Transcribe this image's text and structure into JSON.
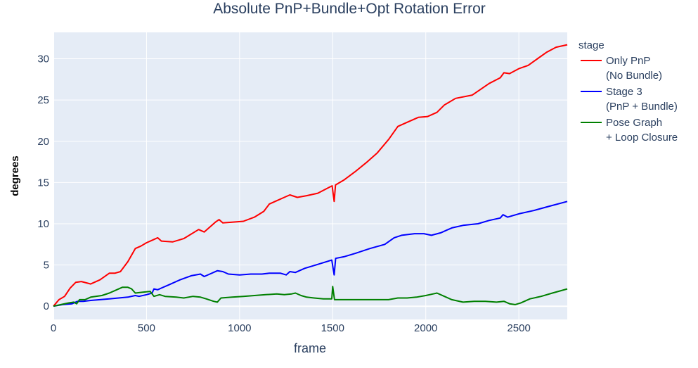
{
  "chart_data": {
    "type": "line",
    "title": "Absolute PnP+Bundle+Opt Rotation Error",
    "xlabel": "frame",
    "ylabel": "degrees",
    "xlim": [
      0,
      2760
    ],
    "ylim": [
      -1.6,
      33.2
    ],
    "x_ticks": [
      0,
      500,
      1000,
      1500,
      2000,
      2500
    ],
    "y_ticks": [
      0,
      5,
      10,
      15,
      20,
      25,
      30
    ],
    "grid": true,
    "legend_title": "stage",
    "legend_position": "right",
    "series": [
      {
        "name": "Only PnP\n(No Bundle)",
        "color": "#ff0000",
        "points": [
          [
            0,
            0
          ],
          [
            30,
            0.8
          ],
          [
            60,
            1.2
          ],
          [
            90,
            2.2
          ],
          [
            120,
            2.9
          ],
          [
            150,
            3.0
          ],
          [
            200,
            2.7
          ],
          [
            250,
            3.2
          ],
          [
            300,
            4.0
          ],
          [
            330,
            4.0
          ],
          [
            360,
            4.2
          ],
          [
            400,
            5.4
          ],
          [
            440,
            7.0
          ],
          [
            470,
            7.3
          ],
          [
            500,
            7.7
          ],
          [
            540,
            8.1
          ],
          [
            560,
            8.3
          ],
          [
            580,
            7.9
          ],
          [
            640,
            7.8
          ],
          [
            700,
            8.2
          ],
          [
            780,
            9.3
          ],
          [
            810,
            9.0
          ],
          [
            870,
            10.2
          ],
          [
            890,
            10.5
          ],
          [
            910,
            10.1
          ],
          [
            960,
            10.2
          ],
          [
            1020,
            10.3
          ],
          [
            1080,
            10.8
          ],
          [
            1130,
            11.5
          ],
          [
            1160,
            12.4
          ],
          [
            1200,
            12.8
          ],
          [
            1240,
            13.2
          ],
          [
            1270,
            13.5
          ],
          [
            1310,
            13.2
          ],
          [
            1360,
            13.4
          ],
          [
            1420,
            13.7
          ],
          [
            1480,
            14.4
          ],
          [
            1497,
            14.6
          ],
          [
            1508,
            12.7
          ],
          [
            1515,
            14.7
          ],
          [
            1560,
            15.3
          ],
          [
            1620,
            16.3
          ],
          [
            1680,
            17.4
          ],
          [
            1740,
            18.6
          ],
          [
            1800,
            20.2
          ],
          [
            1850,
            21.8
          ],
          [
            1900,
            22.3
          ],
          [
            1960,
            22.9
          ],
          [
            2010,
            23.0
          ],
          [
            2060,
            23.5
          ],
          [
            2100,
            24.4
          ],
          [
            2160,
            25.2
          ],
          [
            2250,
            25.6
          ],
          [
            2340,
            27.0
          ],
          [
            2400,
            27.7
          ],
          [
            2420,
            28.3
          ],
          [
            2450,
            28.2
          ],
          [
            2500,
            28.8
          ],
          [
            2550,
            29.2
          ],
          [
            2600,
            30.0
          ],
          [
            2650,
            30.8
          ],
          [
            2700,
            31.4
          ],
          [
            2760,
            31.7
          ]
        ]
      },
      {
        "name": "Stage 3\n(PnP + Bundle)",
        "color": "#0000ff",
        "points": [
          [
            0,
            0
          ],
          [
            50,
            0.2
          ],
          [
            100,
            0.3
          ],
          [
            130,
            0.6
          ],
          [
            160,
            0.6
          ],
          [
            200,
            0.7
          ],
          [
            250,
            0.8
          ],
          [
            300,
            0.9
          ],
          [
            350,
            1.0
          ],
          [
            400,
            1.1
          ],
          [
            440,
            1.3
          ],
          [
            460,
            1.2
          ],
          [
            500,
            1.4
          ],
          [
            530,
            1.6
          ],
          [
            540,
            2.1
          ],
          [
            560,
            2.0
          ],
          [
            580,
            2.2
          ],
          [
            620,
            2.6
          ],
          [
            680,
            3.2
          ],
          [
            740,
            3.7
          ],
          [
            790,
            3.9
          ],
          [
            810,
            3.6
          ],
          [
            840,
            3.9
          ],
          [
            880,
            4.3
          ],
          [
            910,
            4.2
          ],
          [
            940,
            3.9
          ],
          [
            1000,
            3.8
          ],
          [
            1060,
            3.9
          ],
          [
            1120,
            3.9
          ],
          [
            1160,
            4.0
          ],
          [
            1220,
            4.0
          ],
          [
            1250,
            3.8
          ],
          [
            1270,
            4.2
          ],
          [
            1300,
            4.1
          ],
          [
            1350,
            4.6
          ],
          [
            1410,
            5.0
          ],
          [
            1480,
            5.5
          ],
          [
            1495,
            5.6
          ],
          [
            1508,
            3.8
          ],
          [
            1516,
            5.8
          ],
          [
            1560,
            6.0
          ],
          [
            1620,
            6.4
          ],
          [
            1700,
            7.0
          ],
          [
            1780,
            7.5
          ],
          [
            1830,
            8.3
          ],
          [
            1870,
            8.6
          ],
          [
            1940,
            8.8
          ],
          [
            1990,
            8.8
          ],
          [
            2030,
            8.6
          ],
          [
            2080,
            8.9
          ],
          [
            2140,
            9.5
          ],
          [
            2200,
            9.8
          ],
          [
            2280,
            10.0
          ],
          [
            2340,
            10.4
          ],
          [
            2400,
            10.7
          ],
          [
            2415,
            11.1
          ],
          [
            2440,
            10.8
          ],
          [
            2500,
            11.2
          ],
          [
            2580,
            11.6
          ],
          [
            2660,
            12.1
          ],
          [
            2760,
            12.7
          ]
        ]
      },
      {
        "name": "Pose Graph\n+ Loop Closure",
        "color": "#008000",
        "points": [
          [
            0,
            0
          ],
          [
            40,
            0.2
          ],
          [
            80,
            0.4
          ],
          [
            110,
            0.5
          ],
          [
            125,
            0.3
          ],
          [
            140,
            0.8
          ],
          [
            170,
            0.8
          ],
          [
            200,
            1.1
          ],
          [
            260,
            1.3
          ],
          [
            300,
            1.6
          ],
          [
            340,
            2.0
          ],
          [
            370,
            2.3
          ],
          [
            400,
            2.3
          ],
          [
            420,
            2.1
          ],
          [
            440,
            1.6
          ],
          [
            480,
            1.7
          ],
          [
            520,
            1.8
          ],
          [
            540,
            1.2
          ],
          [
            570,
            1.4
          ],
          [
            600,
            1.2
          ],
          [
            660,
            1.1
          ],
          [
            700,
            1.0
          ],
          [
            750,
            1.2
          ],
          [
            790,
            1.1
          ],
          [
            820,
            0.9
          ],
          [
            860,
            0.6
          ],
          [
            880,
            0.5
          ],
          [
            900,
            1.0
          ],
          [
            960,
            1.1
          ],
          [
            1020,
            1.2
          ],
          [
            1080,
            1.3
          ],
          [
            1140,
            1.4
          ],
          [
            1200,
            1.5
          ],
          [
            1240,
            1.4
          ],
          [
            1280,
            1.5
          ],
          [
            1300,
            1.6
          ],
          [
            1330,
            1.3
          ],
          [
            1360,
            1.1
          ],
          [
            1400,
            1.0
          ],
          [
            1450,
            0.9
          ],
          [
            1495,
            0.9
          ],
          [
            1500,
            2.4
          ],
          [
            1510,
            0.8
          ],
          [
            1560,
            0.8
          ],
          [
            1620,
            0.8
          ],
          [
            1680,
            0.8
          ],
          [
            1750,
            0.8
          ],
          [
            1800,
            0.8
          ],
          [
            1850,
            1.0
          ],
          [
            1900,
            1.0
          ],
          [
            1950,
            1.1
          ],
          [
            2000,
            1.3
          ],
          [
            2040,
            1.5
          ],
          [
            2060,
            1.6
          ],
          [
            2100,
            1.2
          ],
          [
            2140,
            0.8
          ],
          [
            2200,
            0.5
          ],
          [
            2260,
            0.6
          ],
          [
            2320,
            0.6
          ],
          [
            2380,
            0.5
          ],
          [
            2420,
            0.6
          ],
          [
            2450,
            0.3
          ],
          [
            2480,
            0.2
          ],
          [
            2510,
            0.4
          ],
          [
            2560,
            0.9
          ],
          [
            2620,
            1.2
          ],
          [
            2680,
            1.6
          ],
          [
            2760,
            2.1
          ]
        ]
      }
    ]
  }
}
